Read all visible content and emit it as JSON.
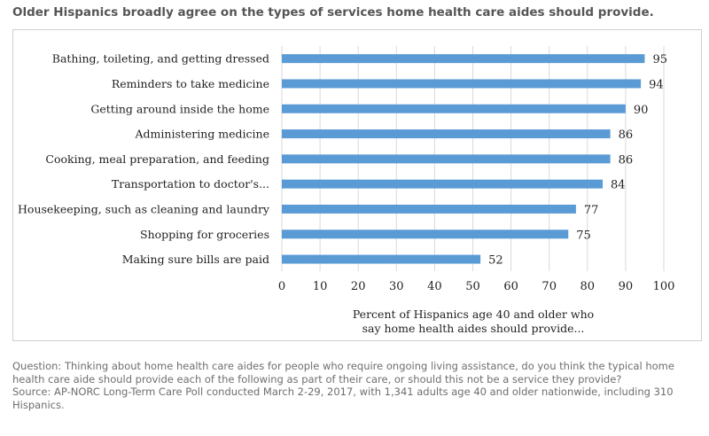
{
  "title": "Older Hispanics broadly agree on the types of services home health care aides should provide.",
  "chart_data": {
    "type": "bar",
    "orientation": "horizontal",
    "categories": [
      "Bathing, toileting, and getting dressed",
      "Reminders to take medicine",
      "Getting around inside the home",
      "Administering medicine",
      "Cooking, meal preparation, and feeding",
      "Transportation to doctor's...",
      "Housekeeping, such as cleaning and laundry",
      "Shopping for groceries",
      "Making sure bills are paid"
    ],
    "values": [
      95,
      94,
      90,
      86,
      86,
      84,
      77,
      75,
      52
    ],
    "data_labels": [
      "95",
      "94",
      "90",
      "86",
      "86",
      "84",
      "77",
      "75",
      "52"
    ],
    "xlim": [
      0,
      100
    ],
    "ticks": [
      "0",
      "10",
      "20",
      "30",
      "40",
      "50",
      "60",
      "70",
      "80",
      "90",
      "100"
    ],
    "xlabel": [
      "Percent of Hispanics age 40 and older who",
      "say home health aides should provide..."
    ],
    "grid": true,
    "bar_color": "#5b9bd5",
    "grid_color": "#d9d9d9"
  },
  "notes": {
    "question": "Question: Thinking about home health care aides for people who require ongoing living assistance, do you think the typical home health care aide should provide each of the following as part of their care, or should this not be a service they provide?",
    "source": "Source: AP-NORC Long-Term Care Poll conducted March 2-29, 2017, with 1,341 adults age 40 and older nationwide, including 310 Hispanics."
  }
}
